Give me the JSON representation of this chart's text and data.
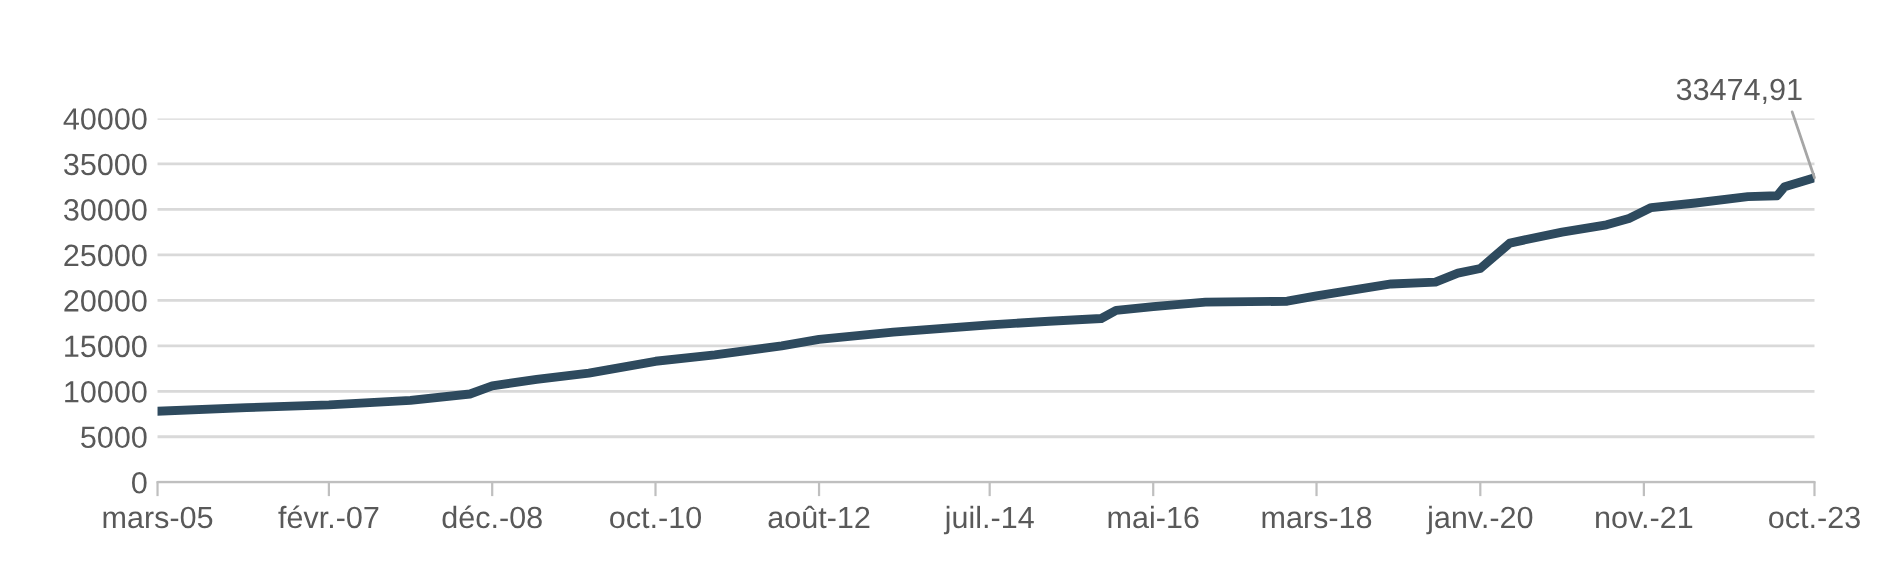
{
  "chart_data": {
    "type": "line",
    "x": [
      "2005-03",
      "2006-03",
      "2007-02",
      "2008-01",
      "2008-09",
      "2008-12",
      "2009-06",
      "2010-01",
      "2010-10",
      "2011-06",
      "2012-03",
      "2012-08",
      "2013-06",
      "2014-07",
      "2015-03",
      "2015-10",
      "2015-12",
      "2016-05",
      "2016-12",
      "2017-11",
      "2018-03",
      "2019-01",
      "2019-07",
      "2019-10",
      "2020-01",
      "2020-05",
      "2020-12",
      "2021-06",
      "2021-09",
      "2021-12",
      "2022-06",
      "2023-01",
      "2023-05",
      "2023-06",
      "2023-10"
    ],
    "series": [
      {
        "color": "#2e4a5e",
        "values": [
          7800,
          8200,
          8500,
          9000,
          9700,
          10600,
          11300,
          12000,
          13300,
          14000,
          15000,
          15700,
          16500,
          17300,
          17700,
          18000,
          18900,
          19300,
          19800,
          19900,
          20500,
          21800,
          22000,
          23000,
          23500,
          26300,
          27500,
          28300,
          29000,
          30200,
          30700,
          31400,
          31500,
          32500,
          33474.91
        ]
      }
    ],
    "xlim": [
      "2005-03",
      "2023-10"
    ],
    "xticks": [
      {
        "value": "2005-03",
        "label": "mars-05"
      },
      {
        "value": "2007-02",
        "label": "févr.-07"
      },
      {
        "value": "2008-12",
        "label": "déc.-08"
      },
      {
        "value": "2010-10",
        "label": "oct.-10"
      },
      {
        "value": "2012-08",
        "label": "août-12"
      },
      {
        "value": "2014-07",
        "label": "juil.-14"
      },
      {
        "value": "2016-05",
        "label": "mai-16"
      },
      {
        "value": "2018-03",
        "label": "mars-18"
      },
      {
        "value": "2020-01",
        "label": "janv.-20"
      },
      {
        "value": "2021-11",
        "label": "nov.-21"
      },
      {
        "value": "2023-10",
        "label": "oct.-23"
      }
    ],
    "ylim": [
      0,
      40000
    ],
    "yticks": [
      0,
      5000,
      10000,
      15000,
      20000,
      25000,
      30000,
      35000,
      40000
    ],
    "grid": "y",
    "legend": false,
    "marker": "none",
    "line_style": "solid",
    "annotations": [
      {
        "text": "33474,91",
        "x": "2023-10",
        "y": 33474.91
      }
    ]
  }
}
